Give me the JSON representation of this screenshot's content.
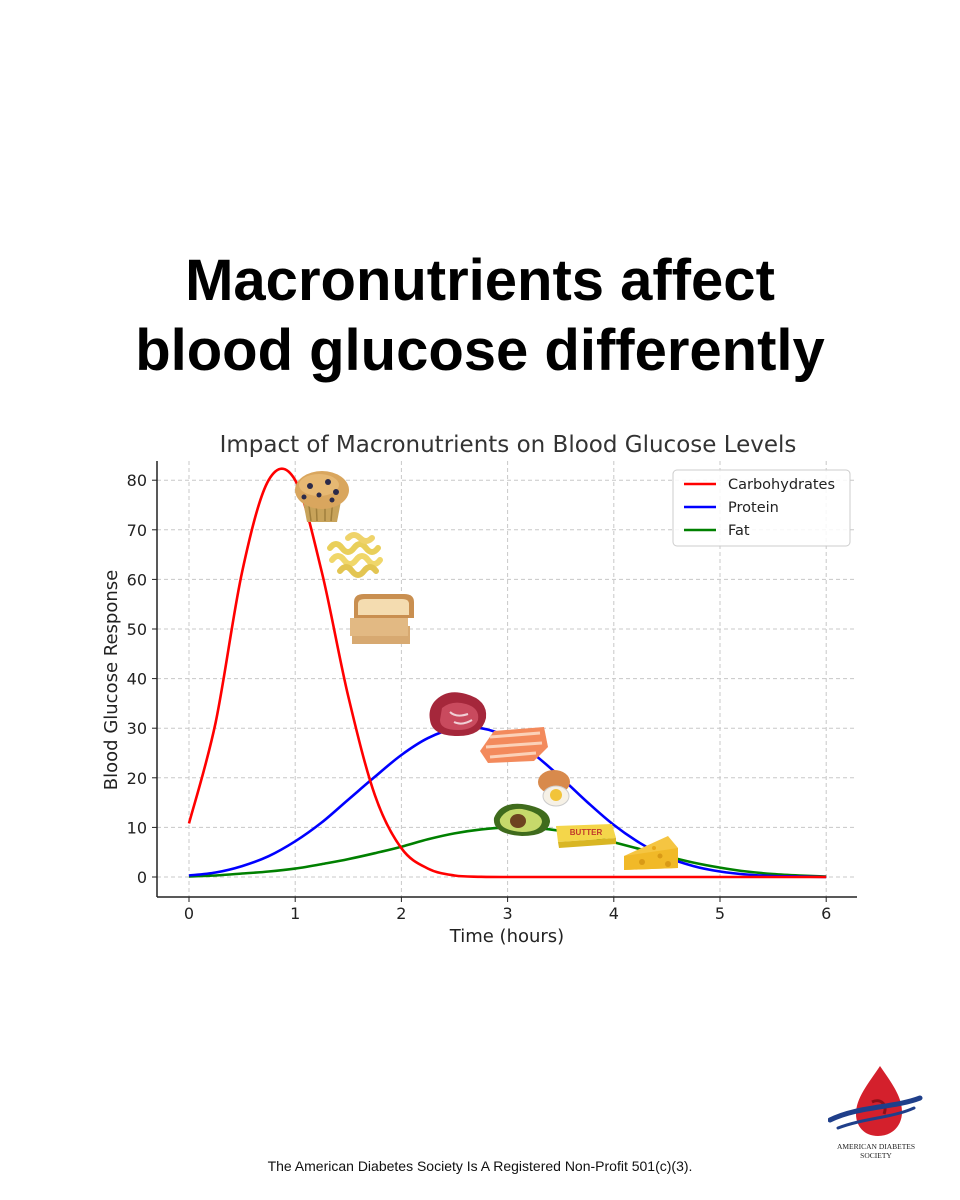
{
  "headline": {
    "line1": "Macronutrients affect",
    "line2": "blood glucose differently"
  },
  "chart_data": {
    "type": "line",
    "title": "Impact of Macronutrients on Blood Glucose Levels",
    "xlabel": "Time (hours)",
    "ylabel": "Blood Glucose Response",
    "xlim": [
      -0.3,
      6.3
    ],
    "ylim": [
      -4,
      84
    ],
    "xticks": [
      0,
      1,
      2,
      3,
      4,
      5,
      6
    ],
    "yticks": [
      0,
      10,
      20,
      30,
      40,
      50,
      60,
      70,
      80
    ],
    "grid": true,
    "legend_position": "top-right",
    "x": [
      0,
      0.25,
      0.5,
      0.75,
      1.0,
      1.25,
      1.5,
      1.75,
      2.0,
      2.25,
      2.5,
      2.75,
      3.0,
      3.25,
      3.5,
      3.75,
      4.0,
      4.25,
      4.5,
      4.75,
      5.0,
      5.25,
      5.5,
      5.75,
      6.0
    ],
    "series": [
      {
        "name": "Carbohydrates",
        "color": "#ff0000",
        "values": [
          10.8,
          31.1,
          61.5,
          80.0,
          80.0,
          61.5,
          36.4,
          16.5,
          5.8,
          1.7,
          0.3,
          0.05,
          0,
          0,
          0,
          0,
          0,
          0,
          0,
          0,
          0,
          0,
          0,
          0,
          0
        ]
      },
      {
        "name": "Protein",
        "color": "#0000ff",
        "values": [
          0.3,
          0.9,
          2.2,
          4.2,
          7.2,
          11.0,
          15.6,
          20.2,
          24.6,
          28.0,
          29.9,
          30.0,
          28.2,
          24.7,
          20.1,
          15.1,
          10.5,
          6.8,
          4.0,
          2.2,
          1.1,
          0.5,
          0.2,
          0.1,
          0
        ]
      },
      {
        "name": "Fat",
        "color": "#008000",
        "values": [
          0.1,
          0.3,
          0.7,
          1.1,
          1.7,
          2.6,
          3.6,
          4.8,
          6.1,
          7.6,
          8.8,
          9.6,
          10.0,
          9.9,
          9.3,
          8.3,
          7.0,
          5.6,
          4.2,
          2.9,
          1.9,
          1.1,
          0.6,
          0.3,
          0.1
        ]
      }
    ]
  },
  "food_icons": [
    "muffin-icon",
    "pasta-icon",
    "bread-icon",
    "steak-icon",
    "salmon-icon",
    "egg-icon",
    "avocado-icon",
    "butter-icon",
    "cheese-icon"
  ],
  "food_labels": {
    "butter": "BUTTER"
  },
  "footer": {
    "note": "The American Diabetes Society Is A Registered Non-Profit 501(c)(3)."
  },
  "logo": {
    "org_line1": "AMERICAN DIABETES",
    "org_line2": "SOCIETY"
  },
  "colors": {
    "carbohydrates": "#ff0000",
    "protein": "#0000ff",
    "fat": "#008000",
    "logo_red": "#d4202c",
    "logo_blue": "#1f3f8a"
  }
}
